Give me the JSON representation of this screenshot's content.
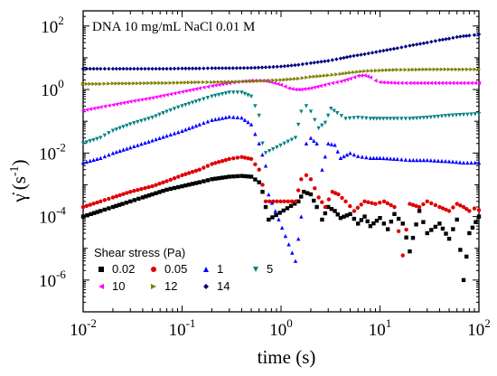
{
  "chart_data": {
    "type": "scatter",
    "annotation": "DNA 10 mg/mL NaCl 0.01 M",
    "xlabel": "time (s)",
    "ylabel_symbol": "γ̇",
    "ylabel_unit_open": "(s",
    "ylabel_unit_sup": "-1",
    "ylabel_unit_close": ")",
    "x_scale": "log",
    "y_scale": "log",
    "xlim": [
      0.01,
      100
    ],
    "ylim": [
      1e-07,
      300
    ],
    "x_ticks": [
      {
        "value": 0.01,
        "base": "10",
        "exp": "-2"
      },
      {
        "value": 0.1,
        "base": "10",
        "exp": "-1"
      },
      {
        "value": 1,
        "base": "10",
        "exp": "0"
      },
      {
        "value": 10,
        "base": "10",
        "exp": "1"
      },
      {
        "value": 100,
        "base": "10",
        "exp": "2"
      }
    ],
    "y_ticks": [
      {
        "value": 1e-06,
        "base": "10",
        "exp": "-6"
      },
      {
        "value": 0.0001,
        "base": "10",
        "exp": "-4"
      },
      {
        "value": 0.01,
        "base": "10",
        "exp": "-2"
      },
      {
        "value": 1,
        "base": "10",
        "exp": "0"
      },
      {
        "value": 100,
        "base": "10",
        "exp": "2"
      }
    ],
    "legend": {
      "title": "Shear stress (Pa)",
      "placement": "bottom-left"
    },
    "series": [
      {
        "name": "0.02",
        "marker": "square",
        "color": "#000000",
        "points": [
          [
            0.01,
            0.0001
          ],
          [
            0.012,
            0.00012
          ],
          [
            0.015,
            0.00015
          ],
          [
            0.02,
            0.0002
          ],
          [
            0.025,
            0.00025
          ],
          [
            0.03,
            0.0003
          ],
          [
            0.04,
            0.0004
          ],
          [
            0.05,
            0.0005
          ],
          [
            0.07,
            0.0007
          ],
          [
            0.1,
            0.0009
          ],
          [
            0.15,
            0.0012
          ],
          [
            0.2,
            0.0015
          ],
          [
            0.3,
            0.0018
          ],
          [
            0.4,
            0.0019
          ],
          [
            0.5,
            0.0018
          ],
          [
            0.6,
            0.0012
          ],
          [
            0.65,
            0.0006
          ],
          [
            0.7,
            0.0002
          ],
          [
            0.75,
            8e-05
          ],
          [
            1.5,
            0.0003
          ],
          [
            1.7,
            0.0006
          ],
          [
            2.0,
            0.0005
          ],
          [
            2.3,
            0.0002
          ],
          [
            2.6,
            8e-05
          ],
          [
            3.0,
            0.0002
          ],
          [
            3.5,
            0.00015
          ],
          [
            4,
            9e-05
          ],
          [
            5,
            0.00012
          ],
          [
            6,
            6e-05
          ],
          [
            7,
            0.0001
          ],
          [
            8,
            5e-05
          ],
          [
            10,
            9e-05
          ],
          [
            12,
            4e-05
          ],
          [
            14,
            0.00012
          ],
          [
            17,
            6e-05
          ],
          [
            20,
            8e-06
          ],
          [
            25,
            0.00015
          ],
          [
            30,
            3e-05
          ],
          [
            40,
            6e-05
          ],
          [
            50,
            2e-05
          ],
          [
            60,
            8e-05
          ],
          [
            70,
            1e-06
          ],
          [
            80,
            3e-05
          ],
          [
            100,
            0.0001
          ]
        ]
      },
      {
        "name": "0.05",
        "marker": "circle",
        "color": "#e00000",
        "points": [
          [
            0.01,
            0.0002
          ],
          [
            0.015,
            0.0003
          ],
          [
            0.02,
            0.0004
          ],
          [
            0.03,
            0.0006
          ],
          [
            0.05,
            0.0009
          ],
          [
            0.07,
            0.0013
          ],
          [
            0.1,
            0.002
          ],
          [
            0.15,
            0.003
          ],
          [
            0.2,
            0.0045
          ],
          [
            0.3,
            0.0065
          ],
          [
            0.4,
            0.0075
          ],
          [
            0.5,
            0.0065
          ],
          [
            0.6,
            0.003
          ],
          [
            0.65,
            0.001
          ],
          [
            0.7,
            0.0003
          ],
          [
            1.4,
            0.0003
          ],
          [
            1.6,
            0.0015
          ],
          [
            1.8,
            0.002
          ],
          [
            2.0,
            0.0015
          ],
          [
            2.4,
            0.0004
          ],
          [
            2.8,
            0.0002
          ],
          [
            3.3,
            0.0006
          ],
          [
            3.8,
            0.0005
          ],
          [
            4.5,
            0.0003
          ],
          [
            5.5,
            0.00015
          ],
          [
            7,
            0.0003
          ],
          [
            9,
            0.00025
          ],
          [
            11,
            0.0003
          ],
          [
            14,
            0.0002
          ],
          [
            17,
            6e-06
          ],
          [
            20,
            0.00025
          ],
          [
            25,
            0.0002
          ],
          [
            30,
            0.0003
          ],
          [
            40,
            0.0002
          ],
          [
            50,
            0.00015
          ],
          [
            60,
            0.00025
          ],
          [
            70,
            0.0002
          ],
          [
            80,
            0.00015
          ],
          [
            90,
            0.00018
          ],
          [
            100,
            0.00016
          ]
        ]
      },
      {
        "name": "1",
        "marker": "triangle-up",
        "color": "#0000ff",
        "points": [
          [
            0.01,
            0.005
          ],
          [
            0.015,
            0.007
          ],
          [
            0.02,
            0.01
          ],
          [
            0.03,
            0.015
          ],
          [
            0.05,
            0.025
          ],
          [
            0.07,
            0.035
          ],
          [
            0.1,
            0.05
          ],
          [
            0.15,
            0.08
          ],
          [
            0.2,
            0.11
          ],
          [
            0.3,
            0.14
          ],
          [
            0.4,
            0.13
          ],
          [
            0.5,
            0.08
          ],
          [
            0.6,
            0.02
          ],
          [
            0.7,
            0.004
          ],
          [
            0.75,
            0.0005
          ],
          [
            1.4,
            4e-06
          ],
          [
            1.6,
            0.0001
          ],
          [
            1.8,
            0.02
          ],
          [
            2.0,
            0.03
          ],
          [
            2.3,
            0.02
          ],
          [
            2.6,
            0.003
          ],
          [
            3.0,
            0.02
          ],
          [
            3.5,
            0.018
          ],
          [
            4,
            0.007
          ],
          [
            5,
            0.01
          ],
          [
            6,
            0.008
          ],
          [
            8,
            0.007
          ],
          [
            10,
            0.007
          ],
          [
            15,
            0.0065
          ],
          [
            20,
            0.006
          ],
          [
            30,
            0.006
          ],
          [
            50,
            0.0055
          ],
          [
            70,
            0.005
          ],
          [
            100,
            0.005
          ]
        ]
      },
      {
        "name": "5",
        "marker": "triangle-down",
        "color": "#008080",
        "points": [
          [
            0.01,
            0.02
          ],
          [
            0.015,
            0.03
          ],
          [
            0.02,
            0.05
          ],
          [
            0.03,
            0.08
          ],
          [
            0.05,
            0.13
          ],
          [
            0.07,
            0.2
          ],
          [
            0.1,
            0.3
          ],
          [
            0.15,
            0.45
          ],
          [
            0.2,
            0.6
          ],
          [
            0.3,
            0.8
          ],
          [
            0.4,
            0.8
          ],
          [
            0.5,
            0.6
          ],
          [
            0.6,
            0.15
          ],
          [
            0.65,
            0.02
          ],
          [
            0.7,
            0.01
          ],
          [
            1.4,
            0.03
          ],
          [
            1.6,
            0.2
          ],
          [
            1.8,
            0.3
          ],
          [
            2.0,
            0.2
          ],
          [
            2.4,
            0.06
          ],
          [
            2.8,
            0.09
          ],
          [
            3.2,
            0.25
          ],
          [
            3.7,
            0.18
          ],
          [
            4.5,
            0.12
          ],
          [
            6,
            0.13
          ],
          [
            8,
            0.12
          ],
          [
            10,
            0.12
          ],
          [
            15,
            0.12
          ],
          [
            20,
            0.12
          ],
          [
            30,
            0.13
          ],
          [
            50,
            0.15
          ],
          [
            70,
            0.16
          ],
          [
            100,
            0.17
          ]
        ]
      },
      {
        "name": "10",
        "marker": "triangle-left",
        "color": "#ff00ff",
        "points": [
          [
            0.01,
            0.22
          ],
          [
            0.015,
            0.28
          ],
          [
            0.02,
            0.33
          ],
          [
            0.03,
            0.42
          ],
          [
            0.05,
            0.55
          ],
          [
            0.07,
            0.68
          ],
          [
            0.1,
            0.85
          ],
          [
            0.15,
            1.1
          ],
          [
            0.2,
            1.3
          ],
          [
            0.3,
            1.6
          ],
          [
            0.4,
            1.8
          ],
          [
            0.5,
            1.9
          ],
          [
            0.6,
            1.9
          ],
          [
            0.7,
            1.85
          ],
          [
            0.8,
            1.7
          ],
          [
            1.0,
            1.4
          ],
          [
            1.2,
            1.1
          ],
          [
            1.4,
            1.0
          ],
          [
            1.6,
            1.0
          ],
          [
            2.0,
            1.1
          ],
          [
            2.5,
            1.3
          ],
          [
            3,
            1.5
          ],
          [
            4,
            1.8
          ],
          [
            5,
            2.2
          ],
          [
            6,
            2.7
          ],
          [
            7,
            2.8
          ],
          [
            8,
            2.4
          ],
          [
            9,
            1.9
          ],
          [
            10,
            1.7
          ],
          [
            15,
            1.6
          ],
          [
            20,
            1.6
          ],
          [
            30,
            1.6
          ],
          [
            50,
            1.6
          ],
          [
            70,
            1.6
          ],
          [
            100,
            1.6
          ]
        ]
      },
      {
        "name": "12",
        "marker": "triangle-right",
        "color": "#808000",
        "points": [
          [
            0.01,
            1.5
          ],
          [
            0.015,
            1.5
          ],
          [
            0.02,
            1.55
          ],
          [
            0.03,
            1.55
          ],
          [
            0.05,
            1.6
          ],
          [
            0.07,
            1.6
          ],
          [
            0.1,
            1.65
          ],
          [
            0.15,
            1.7
          ],
          [
            0.2,
            1.7
          ],
          [
            0.3,
            1.75
          ],
          [
            0.5,
            1.8
          ],
          [
            0.7,
            1.9
          ],
          [
            1.0,
            2.0
          ],
          [
            1.5,
            2.2
          ],
          [
            2,
            2.5
          ],
          [
            3,
            2.8
          ],
          [
            4,
            3.1
          ],
          [
            5,
            3.4
          ],
          [
            7,
            3.8
          ],
          [
            10,
            4.0
          ],
          [
            15,
            4.2
          ],
          [
            20,
            4.2
          ],
          [
            30,
            4.3
          ],
          [
            50,
            4.3
          ],
          [
            70,
            4.3
          ],
          [
            100,
            4.3
          ]
        ]
      },
      {
        "name": "14",
        "marker": "diamond",
        "color": "#000080",
        "points": [
          [
            0.01,
            4.5
          ],
          [
            0.015,
            4.5
          ],
          [
            0.02,
            4.5
          ],
          [
            0.03,
            4.5
          ],
          [
            0.05,
            4.5
          ],
          [
            0.07,
            4.5
          ],
          [
            0.1,
            4.6
          ],
          [
            0.15,
            4.6
          ],
          [
            0.2,
            4.7
          ],
          [
            0.3,
            4.7
          ],
          [
            0.5,
            4.8
          ],
          [
            0.7,
            5.0
          ],
          [
            1.0,
            5.3
          ],
          [
            1.5,
            6.0
          ],
          [
            2,
            6.8
          ],
          [
            3,
            8.0
          ],
          [
            4,
            9.5
          ],
          [
            5,
            11
          ],
          [
            7,
            13
          ],
          [
            10,
            16
          ],
          [
            15,
            20
          ],
          [
            20,
            24
          ],
          [
            30,
            30
          ],
          [
            40,
            36
          ],
          [
            50,
            40
          ],
          [
            60,
            45
          ],
          [
            70,
            48
          ],
          [
            80,
            50
          ],
          [
            90,
            52
          ],
          [
            100,
            55
          ]
        ]
      }
    ]
  }
}
